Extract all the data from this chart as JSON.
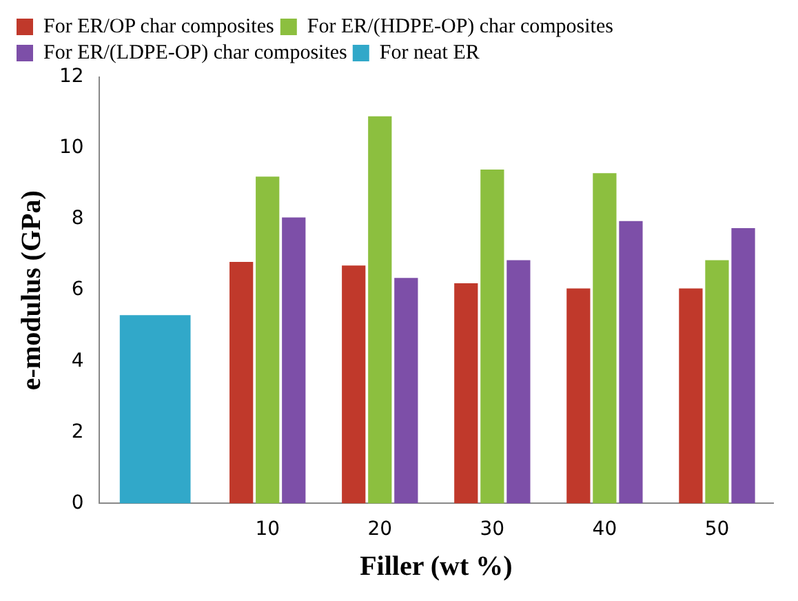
{
  "chart_data": {
    "type": "bar",
    "xlabel": "Filler (wt %)",
    "ylabel": "e-modulus (GPa)",
    "categories": [
      null,
      "10",
      "20",
      "30",
      "40",
      "50"
    ],
    "series": [
      {
        "name": "For ER/OP char composites",
        "color": "#c0392b",
        "values": [
          null,
          6.8,
          6.7,
          6.2,
          6.05,
          6.05
        ]
      },
      {
        "name": "For ER/(HDPE-OP) char composites",
        "color": "#8cbf3f",
        "values": [
          null,
          9.2,
          10.9,
          9.4,
          9.3,
          6.85
        ]
      },
      {
        "name": "For ER/(LDPE-OP) char composites",
        "color": "#7d4fa8",
        "values": [
          null,
          8.05,
          6.35,
          6.85,
          7.95,
          7.75
        ]
      },
      {
        "name": "For neat ER",
        "color": "#31a8c9",
        "values": [
          5.3,
          null,
          null,
          null,
          null,
          null
        ]
      }
    ],
    "ylim": [
      0,
      12
    ],
    "yticks": [
      0,
      2,
      4,
      6,
      8,
      10,
      12
    ],
    "grid": false,
    "legend": "top left"
  }
}
